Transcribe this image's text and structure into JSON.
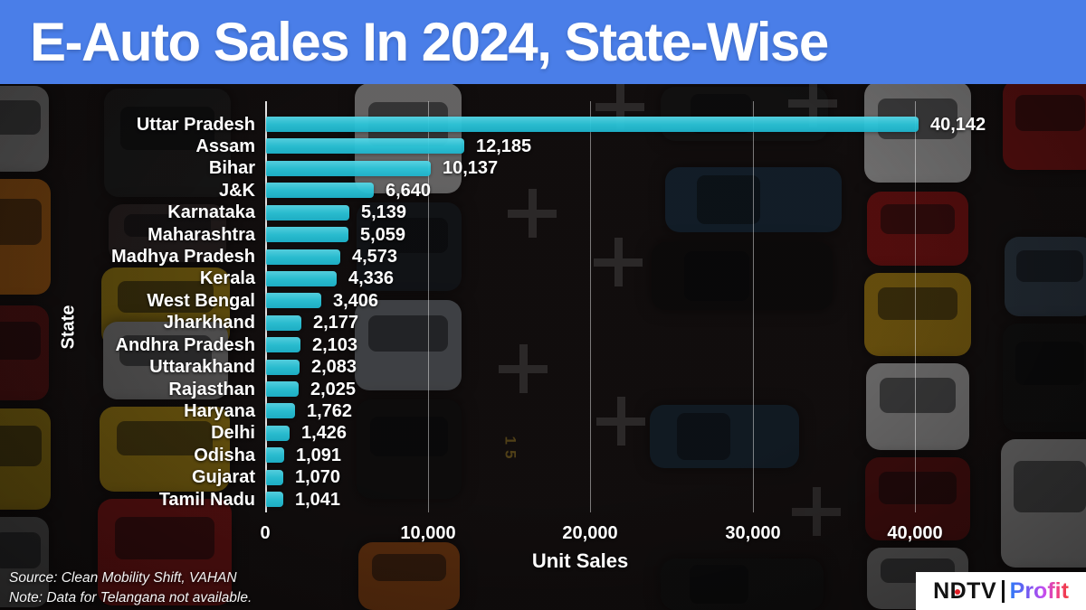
{
  "header": {
    "title": "E-Auto Sales In 2024, State-Wise"
  },
  "chart_data": {
    "type": "bar",
    "orientation": "horizontal",
    "title": "E-Auto Sales In 2024, State-Wise",
    "xlabel": "Unit Sales",
    "ylabel": "State",
    "xlim": [
      0,
      42000
    ],
    "xticks": [
      0,
      10000,
      20000,
      30000,
      40000
    ],
    "xtick_labels": [
      "0",
      "10,000",
      "20,000",
      "30,000",
      "40,000"
    ],
    "grid": "vertical-gridlines-on",
    "legend": "none",
    "bar_color": "#2cc6da",
    "categories": [
      "Uttar Pradesh",
      "Assam",
      "Bihar",
      "J&K",
      "Karnataka",
      "Maharashtra",
      "Madhya Pradesh",
      "Kerala",
      "West Bengal",
      "Jharkhand",
      "Andhra Pradesh",
      "Uttarakhand",
      "Rajasthan",
      "Haryana",
      "Delhi",
      "Odisha",
      "Gujarat",
      "Tamil Nadu"
    ],
    "values": [
      40142,
      12185,
      10137,
      6640,
      5139,
      5059,
      4573,
      4336,
      3406,
      2177,
      2103,
      2083,
      2025,
      1762,
      1426,
      1091,
      1070,
      1041
    ],
    "value_labels": [
      "40,142",
      "12,185",
      "10,137",
      "6,640",
      "5,139",
      "5,059",
      "4,573",
      "4,336",
      "3,406",
      "2,177",
      "2,103",
      "2,083",
      "2,025",
      "1,762",
      "1,426",
      "1,091",
      "1,070",
      "1,041"
    ]
  },
  "background": {
    "pavement_marking": "15"
  },
  "footer": {
    "source": "Source: Clean Mobility Shift, VAHAN",
    "note": "Note: Data for Telangana not available.",
    "logo": {
      "ndtv": "NDTV",
      "profit": "Profit"
    }
  },
  "colors": {
    "header_blue": "#4a7ee8",
    "bar_cyan": "#2cc6da",
    "text_white": "#ffffff",
    "ndtv_dot_red": "#e11d25",
    "profit_gradient": [
      "#2f7bf6",
      "#7e54f0",
      "#c44df0",
      "#f0408a",
      "#ef3b3b"
    ]
  }
}
